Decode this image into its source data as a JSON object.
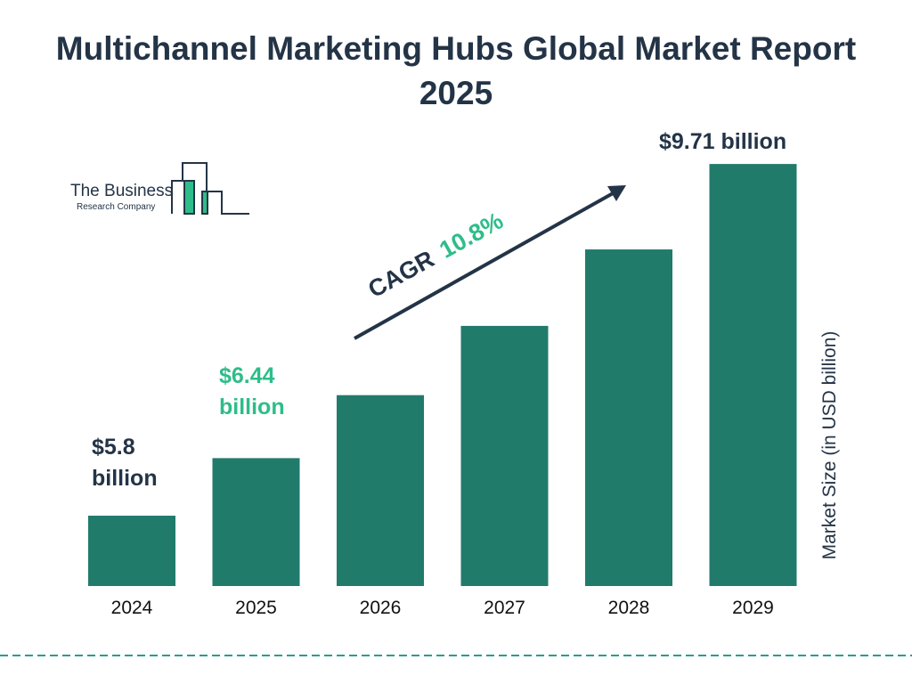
{
  "title": "Multichannel Marketing Hubs Global Market Report 2025",
  "logo": {
    "line1": "The Business",
    "line2": "Research Company"
  },
  "colors": {
    "bar": "#217b6b",
    "dark": "#243447",
    "accent": "#2ebd8a"
  },
  "chart_data": {
    "type": "bar",
    "categories": [
      "2024",
      "2025",
      "2026",
      "2027",
      "2028",
      "2029"
    ],
    "values": [
      5.8,
      6.44,
      7.14,
      7.91,
      8.76,
      9.71
    ],
    "data_labels": [
      "$5.8 billion",
      "$6.44 billion",
      "",
      "",
      "",
      "$9.71 billion"
    ],
    "ylabel": "Market Size (in USD billion)",
    "annotation": {
      "cagr_label": "CAGR",
      "cagr_value": "10.8%"
    },
    "grid": false
  }
}
